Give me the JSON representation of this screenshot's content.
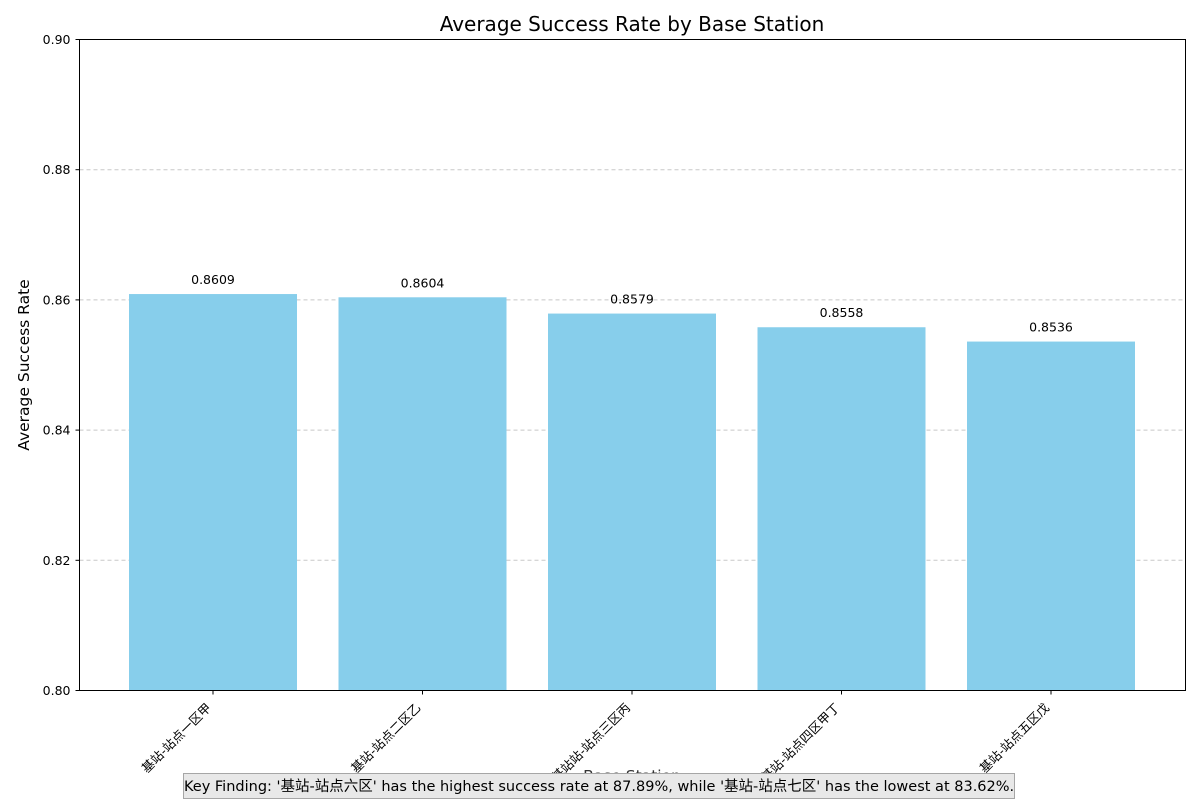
{
  "chart_data": {
    "type": "bar",
    "title": "Average Success Rate by Base Station",
    "xlabel": "Base Station",
    "ylabel": "Average Success Rate",
    "categories": [
      "基站-站点一区甲",
      "基站-站点二区乙",
      "基站站-站点三区丙",
      "基站-站点四区甲丁",
      "基站-站点五区戊"
    ],
    "values": [
      0.8609,
      0.8604,
      0.8579,
      0.8558,
      0.8536
    ],
    "value_labels": [
      "0.8609",
      "0.8604",
      "0.8579",
      "0.8558",
      "0.8536"
    ],
    "ylim": [
      0.8,
      0.9
    ],
    "yticks": [
      "0.80",
      "0.82",
      "0.84",
      "0.86",
      "0.88",
      "0.90"
    ],
    "grid": "y-dashed",
    "bar_color": "#87CEEB",
    "grid_color": "#c8c8c8"
  },
  "annotation": {
    "text": "Key Finding: '基站-站点六区' has the highest success rate at 87.89%, while '基站-站点七区' has the lowest at 83.62%."
  }
}
